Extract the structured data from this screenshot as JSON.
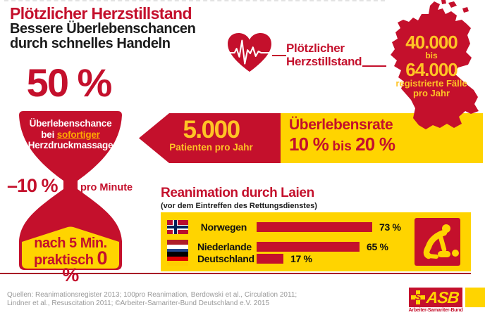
{
  "colors": {
    "red": "#c4102c",
    "yellow": "#ffd400",
    "gold": "#ffc425",
    "orange": "#ffa800",
    "baseline": "#a80f26",
    "gray": "#999999",
    "ink": "#1a1a1a"
  },
  "header": {
    "title": "Plötzlicher Herzstillstand",
    "subtitle_line1": "Bessere Überlebenschancen",
    "subtitle_line2": "durch schnelles Handeln"
  },
  "heart_callout": {
    "line1": "Plötzlicher",
    "line2": "Herzstillstand"
  },
  "map_stat": {
    "value_top": "40.000",
    "bis": "bis",
    "value_bottom": "64.000",
    "caption_line1": "registrierte Fälle",
    "caption_line2": "pro Jahr"
  },
  "hourglass": {
    "headline": "50 %",
    "bulb_line1": "Überlebenschance",
    "bulb_line2_prefix": "bei ",
    "bulb_line2_highlight": "sofortiger",
    "bulb_line3": "Herzdruckmassage",
    "rate_value": "–10 %",
    "rate_unit": "pro Minute",
    "sand_line1": "nach 5 Min.",
    "sand_line2_prefix": "praktisch ",
    "sand_line2_value": "0 %"
  },
  "banner": {
    "patients_value": "5.000",
    "patients_label": "Patienten pro Jahr",
    "survival_title": "Überlebensrate",
    "survival_from": "10 %",
    "survival_bis": " bis ",
    "survival_to": "20 %"
  },
  "chart_data": {
    "type": "bar",
    "orientation": "horizontal",
    "title": "Reanimation durch Laien",
    "subtitle": "(vor dem Eintreffen des Rettungsdienstes)",
    "categories": [
      "Norwegen",
      "Niederlande",
      "Deutschland"
    ],
    "values": [
      73,
      65,
      17
    ],
    "value_labels": [
      "73 %",
      "65 %",
      "17 %"
    ],
    "unit": "%",
    "xlim": [
      0,
      100
    ],
    "bar_color": "#c4102c",
    "background": "#ffd400",
    "flags": [
      "norway-flag-icon",
      "netherlands-flag-icon",
      "germany-flag-icon"
    ],
    "legend_position": "none",
    "grid": false
  },
  "footer": {
    "sources_line1": "Quellen: Reanimationsregister 2013; 100pro Reanimation, Berdowski et al., Circulation 2011;",
    "sources_line2": "Lindner et al., Resuscitation 2011; ©Arbeiter-Samariter-Bund Deutschland e.V. 2015",
    "logo_text": "ASB",
    "logo_cross_s": "S",
    "logo_subtext": "Arbeiter-Samariter-Bund"
  }
}
